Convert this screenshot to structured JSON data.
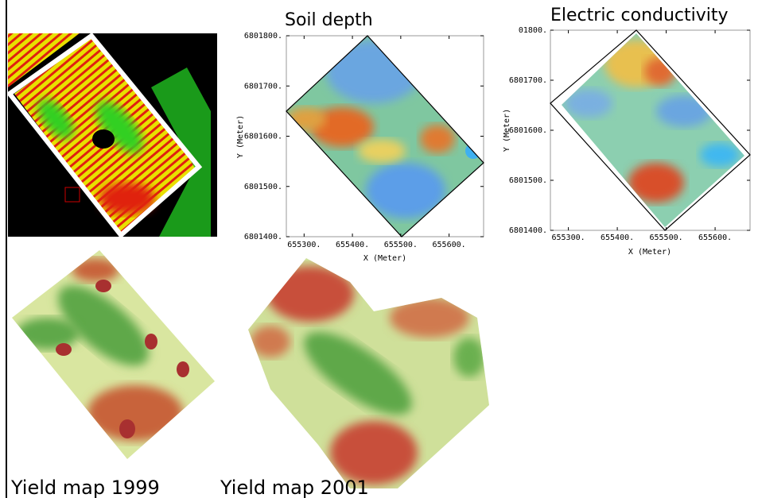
{
  "panels": {
    "soil_depth": {
      "title": "Soil depth",
      "yticks": [
        "6801800.",
        "6801700.",
        "6801600.",
        "6801500.",
        "6801400."
      ],
      "xticks": [
        "655300.",
        "655400.",
        "655500.",
        "655600."
      ],
      "xlabel": "X (Meter)",
      "ylabel": "Y (Meter)"
    },
    "electric_conductivity": {
      "title": "Electric conductivity",
      "yticks": [
        "01800.",
        "6801700.",
        "6801600.",
        "6801500.",
        "6801400."
      ],
      "xticks": [
        "655300.",
        "655400.",
        "655500.",
        "655600."
      ],
      "xlabel": "X (Meter)",
      "ylabel": "Y (Meter)"
    },
    "yield_1999": {
      "caption": "Yield map 1999"
    },
    "yield_2001": {
      "caption": "Yield map 2001"
    }
  }
}
